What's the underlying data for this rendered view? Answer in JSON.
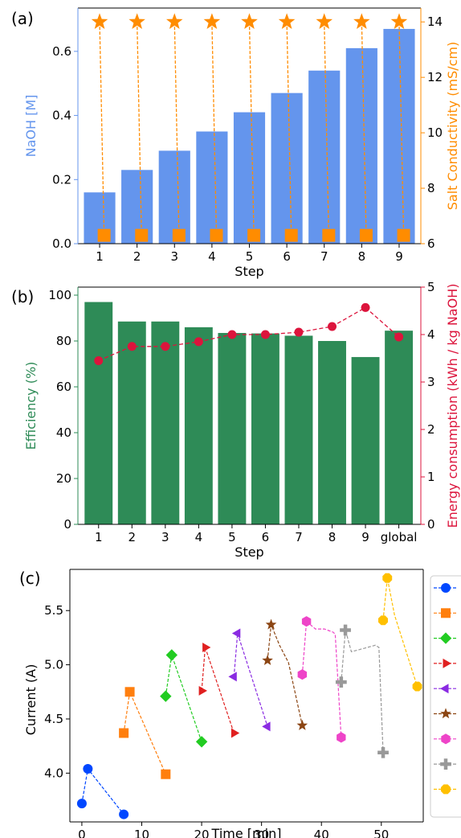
{
  "colors": {
    "naoh_bar": "#6495ED",
    "conductivity": "#FF8C00",
    "efficiency_bar": "#2E8B57",
    "energy": "#DC143C",
    "step_colors": [
      "#0047FF",
      "#FF7F0E",
      "#22CC22",
      "#E02020",
      "#8A2BE2",
      "#8B4513",
      "#EE44C8",
      "#999999",
      "#FFC000"
    ],
    "step_markers": [
      "circle",
      "square",
      "diamond",
      "triangle-right",
      "triangle-left",
      "star",
      "hexagon",
      "plus",
      "octagon"
    ]
  },
  "chart_data": [
    {
      "panel": "(a)",
      "type": "bar",
      "categories": [
        "1",
        "2",
        "3",
        "4",
        "5",
        "6",
        "7",
        "8",
        "9"
      ],
      "series": [
        {
          "values": [
            0.16,
            0.23,
            0.29,
            0.35,
            0.41,
            0.47,
            0.54,
            0.61,
            0.67
          ],
          "axis": "left",
          "kind": "bar"
        }
      ],
      "markers_top": {
        "values": [
          14,
          14,
          14,
          14,
          14,
          14,
          14,
          14,
          14
        ],
        "marker": "star",
        "axis": "right"
      },
      "markers_bottom": {
        "values": [
          6.3,
          6.3,
          6.3,
          6.3,
          6.3,
          6.3,
          6.3,
          6.3,
          6.3
        ],
        "marker": "square",
        "axis": "right"
      },
      "xlabel": "Step",
      "ylabel": "NaOH [M]",
      "ylabel_right": "Salt Conductivity (mS/cm)",
      "ylim": [
        0,
        0.7
      ],
      "ylim_right": [
        6,
        14.5
      ],
      "yticks": [
        "0.0",
        "0.2",
        "0.4",
        "0.6"
      ],
      "yticks_right": [
        "6",
        "8",
        "10",
        "12",
        "14"
      ],
      "grid": false
    },
    {
      "panel": "(b)",
      "type": "bar",
      "categories": [
        "1",
        "2",
        "3",
        "4",
        "5",
        "6",
        "7",
        "8",
        "9",
        "global"
      ],
      "series": [
        {
          "values": [
            97,
            88.5,
            88.5,
            86,
            83.5,
            83.3,
            82.3,
            80,
            73,
            84.5
          ],
          "axis": "left",
          "kind": "bar"
        },
        {
          "values": [
            3.45,
            3.75,
            3.75,
            3.85,
            4.0,
            4.0,
            4.05,
            4.17,
            4.57,
            3.95
          ],
          "axis": "right",
          "kind": "line"
        }
      ],
      "xlabel": "Step",
      "ylabel": "Efficiency (%)",
      "ylabel_right": "Energy consumption (kWh / kg NaOH)",
      "ylim": [
        0,
        100
      ],
      "ylim_right": [
        0,
        5
      ],
      "yticks": [
        "0",
        "20",
        "40",
        "60",
        "80",
        "100"
      ],
      "yticks_right": [
        "0",
        "1",
        "2",
        "3",
        "4",
        "5"
      ],
      "grid": false
    },
    {
      "panel": "(c)",
      "type": "line",
      "xlabel": "Time [min]",
      "ylabel": "Current (A)",
      "xlim": [
        -2,
        57
      ],
      "ylim": [
        3.55,
        5.88
      ],
      "xticks": [
        "0",
        "10",
        "20",
        "30",
        "40",
        "50"
      ],
      "yticks": [
        "4.0",
        "4.5",
        "5.0",
        "5.5"
      ],
      "legend": "right",
      "grid": false,
      "series": [
        {
          "x": [
            0,
            1,
            7
          ],
          "y": [
            3.72,
            4.04,
            3.62
          ],
          "markers": [
            [
              0,
              3.72
            ],
            [
              1,
              4.04
            ],
            [
              7,
              3.62
            ]
          ]
        },
        {
          "x": [
            7,
            8,
            14
          ],
          "y": [
            4.37,
            4.75,
            3.99
          ],
          "markers": [
            [
              7,
              4.37
            ],
            [
              8,
              4.75
            ],
            [
              14,
              3.99
            ]
          ]
        },
        {
          "x": [
            14,
            15,
            20
          ],
          "y": [
            4.71,
            5.09,
            4.29
          ],
          "markers": [
            [
              14,
              4.71
            ],
            [
              15,
              5.09
            ],
            [
              20,
              4.29
            ]
          ]
        },
        {
          "x": [
            20,
            20.6,
            25.4
          ],
          "y": [
            4.76,
            5.16,
            4.37
          ],
          "markers": [
            [
              20,
              4.76
            ],
            [
              20.6,
              5.16
            ],
            [
              25.4,
              4.37
            ]
          ]
        },
        {
          "x": [
            25.4,
            26,
            31
          ],
          "y": [
            4.89,
            5.29,
            4.43
          ],
          "markers": [
            [
              25.4,
              4.89
            ],
            [
              26,
              5.29
            ],
            [
              31,
              4.43
            ]
          ]
        },
        {
          "x": [
            31,
            31.6,
            33,
            34.5,
            36.8
          ],
          "y": [
            5.04,
            5.37,
            5.18,
            5.02,
            4.44
          ],
          "markers": [
            [
              31,
              5.04
            ],
            [
              31.6,
              5.37
            ],
            [
              36.8,
              4.44
            ]
          ]
        },
        {
          "x": [
            36.8,
            37.5,
            39,
            40.5,
            42,
            42.3,
            43.3
          ],
          "y": [
            4.91,
            5.4,
            5.33,
            5.33,
            5.3,
            5.28,
            4.33
          ],
          "markers": [
            [
              36.8,
              4.91
            ],
            [
              37.5,
              5.4
            ],
            [
              43.3,
              4.33
            ]
          ]
        },
        {
          "x": [
            43.3,
            44,
            45,
            47,
            49,
            49.6,
            50.3
          ],
          "y": [
            4.84,
            5.32,
            5.12,
            5.15,
            5.18,
            5.16,
            4.19
          ],
          "markers": [
            [
              43.3,
              4.84
            ],
            [
              44,
              5.32
            ],
            [
              50.3,
              4.19
            ]
          ]
        },
        {
          "x": [
            50.3,
            51,
            52.2,
            56
          ],
          "y": [
            5.41,
            5.8,
            5.46,
            4.8
          ],
          "markers": [
            [
              50.3,
              5.41
            ],
            [
              51,
              5.8
            ],
            [
              56,
              4.8
            ]
          ]
        }
      ]
    }
  ]
}
